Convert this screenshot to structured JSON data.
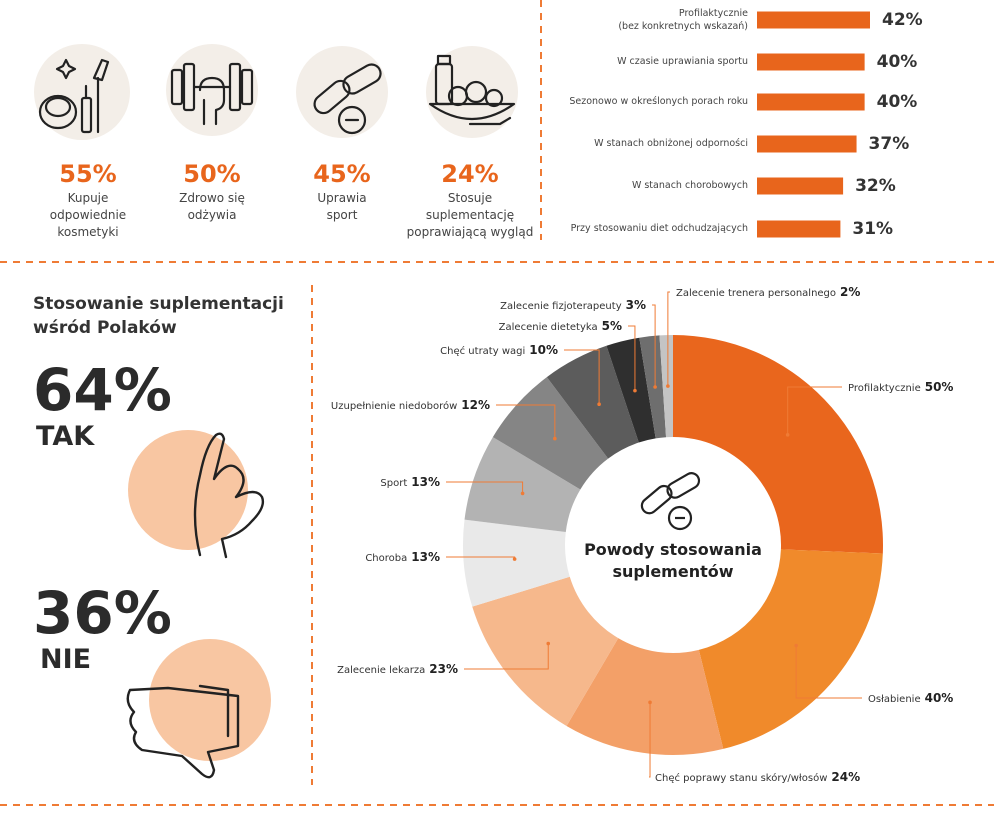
{
  "stats": {
    "items": [
      {
        "value": "55%",
        "label": "Kupuje\nodpowiednie\nkosmetyki"
      },
      {
        "value": "50%",
        "label": "Zdrowo się\nodżywia"
      },
      {
        "value": "45%",
        "label": "Uprawia\nsport"
      },
      {
        "value": "24%",
        "label": "Stosuje\nsuplementację\npoprawiającą wygląd"
      }
    ]
  },
  "usage": {
    "title": "Stosowanie suplementacji\nwśród Polaków",
    "items": [
      {
        "value": "64%",
        "label": "TAK"
      },
      {
        "value": "36%",
        "label": "NIE"
      }
    ]
  },
  "chart_data": [
    {
      "type": "bar",
      "orientation": "horizontal",
      "color": "#e8651c",
      "categories": [
        "Profilaktycznie\n(bez konkretnych wskazań)",
        "W czasie uprawiania sportu",
        "Sezonowo w określonych porach roku",
        "W stanach obniżonej odporności",
        "W stanach chorobowych",
        "Przy stosowaniu diet odchudzających"
      ],
      "values": [
        42,
        40,
        40,
        37,
        32,
        31
      ],
      "value_labels": [
        "42%",
        "40%",
        "40%",
        "37%",
        "32%",
        "31%"
      ]
    },
    {
      "type": "pie",
      "donut": true,
      "title": "Powody stosowania\nsuplementów",
      "categories": [
        "Profilaktycznie",
        "Osłabienie",
        "Chęć poprawy stanu skóry/włosów",
        "Zalecenie lekarza",
        "Choroba",
        "Sport",
        "Uzupełnienie niedoborów",
        "Chęć utraty wagi",
        "Zalecenie dietetyka",
        "Zalecenie fizjoterapeuty",
        "Zalecenie trenera personalnego"
      ],
      "values": [
        50,
        40,
        24,
        23,
        13,
        13,
        12,
        10,
        5,
        3,
        2
      ],
      "value_labels": [
        "50%",
        "40%",
        "24%",
        "23%",
        "13%",
        "13%",
        "12%",
        "10%",
        "5%",
        "3%",
        "2%"
      ],
      "colors": [
        "#e9661d",
        "#f08a2b",
        "#f3a068",
        "#f6b88c",
        "#e9e9e9",
        "#b3b3b3",
        "#858585",
        "#5c5c5c",
        "#2f2f2f",
        "#6e6e6e",
        "#c4c4c4"
      ]
    }
  ]
}
